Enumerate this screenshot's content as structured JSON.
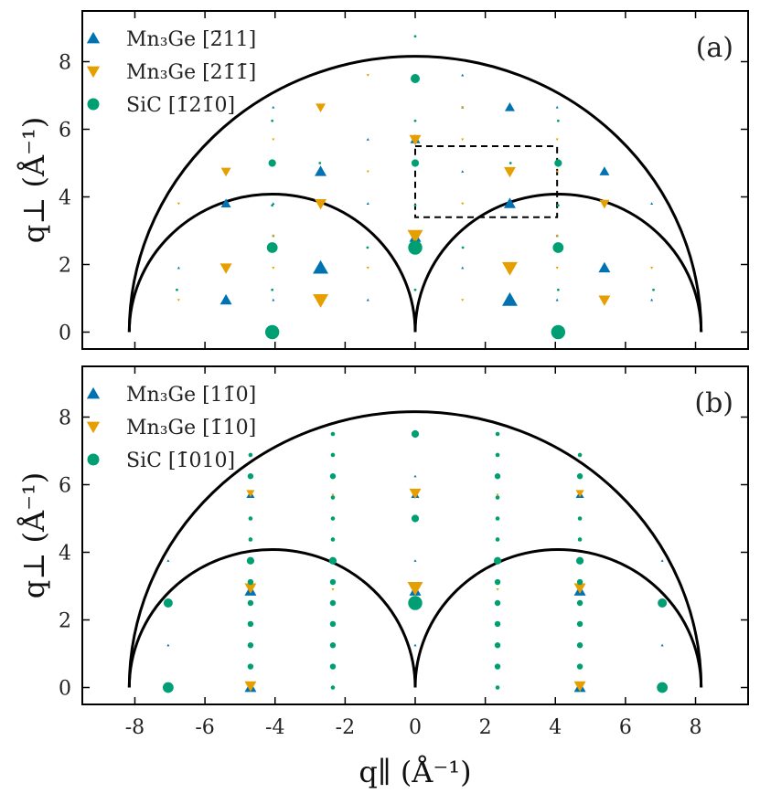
{
  "chart_data": [
    {
      "type": "scatter",
      "panel_label": "(a)",
      "xlabel": "q∥ (Å⁻¹)",
      "ylabel": "q⊥ (Å⁻¹)",
      "xlim": [
        -9.5,
        9.5
      ],
      "ylim": [
        -0.5,
        9.5
      ],
      "xticks": [
        -8,
        -6,
        -4,
        -2,
        0,
        2,
        4,
        6,
        8
      ],
      "yticks": [
        0,
        2,
        4,
        6,
        8
      ],
      "xtick_labels": [
        "-8",
        "-6",
        "-4",
        "-2",
        "0",
        "2",
        "4",
        "6",
        "8"
      ],
      "ytick_labels": [
        "0",
        "2",
        "4",
        "6",
        "8"
      ],
      "show_xtick_labels": false,
      "show_xlabel": false,
      "legend_position": "top-left",
      "circles": [
        {
          "cx": 0,
          "cy": 0,
          "r": 8.16
        },
        {
          "cx": -4.08,
          "cy": 0,
          "r": 4.08
        },
        {
          "cx": 4.08,
          "cy": 0,
          "r": 4.08
        }
      ],
      "dashed_box": {
        "x0": 0,
        "x1": 4.05,
        "y0": 3.4,
        "y1": 5.5
      },
      "series": [
        {
          "name": "Mn₃Ge [2̄11]",
          "marker": "triangle-up",
          "color": "#0072B2",
          "points": [
            {
              "x": -5.4,
              "y": 0.95,
              "s": 6
            },
            {
              "x": -2.7,
              "y": 1.9,
              "s": 8
            },
            {
              "x": 2.7,
              "y": 0.95,
              "s": 8
            },
            {
              "x": 5.4,
              "y": 1.9,
              "s": 6
            },
            {
              "x": -5.4,
              "y": 3.8,
              "s": 5
            },
            {
              "x": 2.7,
              "y": 3.8,
              "s": 6
            },
            {
              "x": 0,
              "y": 2.8,
              "s": 6
            },
            {
              "x": -2.7,
              "y": 4.75,
              "s": 6
            },
            {
              "x": 5.4,
              "y": 4.75,
              "s": 5
            },
            {
              "x": 0,
              "y": 5.7,
              "s": 5
            },
            {
              "x": 2.7,
              "y": 6.65,
              "s": 5
            },
            {
              "x": -6.75,
              "y": 1.9,
              "s": 1
            },
            {
              "x": 6.75,
              "y": 0.95,
              "s": 1
            },
            {
              "x": -4.05,
              "y": 0.95,
              "s": 1
            },
            {
              "x": -1.35,
              "y": 0.95,
              "s": 1
            },
            {
              "x": 1.35,
              "y": 1.9,
              "s": 1
            },
            {
              "x": -1.35,
              "y": 3.8,
              "s": 1
            },
            {
              "x": 1.35,
              "y": 4.75,
              "s": 1
            },
            {
              "x": 6.75,
              "y": 3.8,
              "s": 1
            },
            {
              "x": -4.05,
              "y": 3.8,
              "s": 1
            },
            {
              "x": -1.35,
              "y": 5.7,
              "s": 1
            },
            {
              "x": 1.35,
              "y": 6.65,
              "s": 1
            },
            {
              "x": -4.05,
              "y": 6.65,
              "s": 1
            },
            {
              "x": 4.05,
              "y": 6.65,
              "s": 1
            },
            {
              "x": 1.35,
              "y": 7.6,
              "s": 1
            },
            {
              "x": -4.05,
              "y": 2.85,
              "s": 1
            },
            {
              "x": 4.05,
              "y": 0.95,
              "s": 1
            },
            {
              "x": 4.05,
              "y": 2.85,
              "s": 1
            }
          ]
        },
        {
          "name": "Mn₃Ge [21̄1̄]",
          "marker": "triangle-down",
          "color": "#E69F00",
          "points": [
            {
              "x": -2.7,
              "y": 0.95,
              "s": 8
            },
            {
              "x": 2.7,
              "y": 1.9,
              "s": 8
            },
            {
              "x": -5.4,
              "y": 1.9,
              "s": 6
            },
            {
              "x": 5.4,
              "y": 0.95,
              "s": 6
            },
            {
              "x": 0,
              "y": 2.85,
              "s": 8
            },
            {
              "x": -2.7,
              "y": 3.8,
              "s": 6
            },
            {
              "x": 5.4,
              "y": 3.8,
              "s": 5
            },
            {
              "x": -5.4,
              "y": 4.75,
              "s": 5
            },
            {
              "x": 2.7,
              "y": 4.75,
              "s": 6
            },
            {
              "x": 0,
              "y": 5.7,
              "s": 6
            },
            {
              "x": -2.7,
              "y": 6.65,
              "s": 5
            },
            {
              "x": -6.75,
              "y": 0.95,
              "s": 1
            },
            {
              "x": 6.75,
              "y": 1.9,
              "s": 1
            },
            {
              "x": -4.05,
              "y": 1.9,
              "s": 1
            },
            {
              "x": -1.35,
              "y": 1.9,
              "s": 1
            },
            {
              "x": 1.35,
              "y": 0.95,
              "s": 1
            },
            {
              "x": 4.05,
              "y": 1.9,
              "s": 1
            },
            {
              "x": -6.75,
              "y": 3.8,
              "s": 1
            },
            {
              "x": 1.35,
              "y": 3.8,
              "s": 1
            },
            {
              "x": -1.35,
              "y": 4.75,
              "s": 1
            },
            {
              "x": 4.05,
              "y": 4.75,
              "s": 1
            },
            {
              "x": 1.35,
              "y": 5.7,
              "s": 1
            },
            {
              "x": -4.05,
              "y": 5.7,
              "s": 1
            },
            {
              "x": 4.05,
              "y": 5.7,
              "s": 1
            },
            {
              "x": -1.35,
              "y": 7.6,
              "s": 1
            },
            {
              "x": 1.35,
              "y": 6.65,
              "s": 1
            },
            {
              "x": -4.05,
              "y": 2.85,
              "s": 1
            },
            {
              "x": 4.05,
              "y": 2.85,
              "s": 1
            }
          ]
        },
        {
          "name": "SiC [1̄21̄0]",
          "marker": "circle",
          "color": "#009E73",
          "points": [
            {
              "x": -4.08,
              "y": 0,
              "s": 8
            },
            {
              "x": 4.08,
              "y": 0,
              "s": 8
            },
            {
              "x": -4.08,
              "y": 2.5,
              "s": 6
            },
            {
              "x": 0,
              "y": 2.5,
              "s": 8
            },
            {
              "x": 4.08,
              "y": 2.5,
              "s": 6
            },
            {
              "x": -4.08,
              "y": 5,
              "s": 4
            },
            {
              "x": 0,
              "y": 5,
              "s": 4
            },
            {
              "x": 4.08,
              "y": 5,
              "s": 4
            },
            {
              "x": 0,
              "y": 7.5,
              "s": 5
            },
            {
              "x": -6.8,
              "y": 1.25,
              "s": 1
            },
            {
              "x": 6.8,
              "y": 1.25,
              "s": 1
            },
            {
              "x": -4.08,
              "y": 1.25,
              "s": 1
            },
            {
              "x": 4.08,
              "y": 1.25,
              "s": 1
            },
            {
              "x": 0,
              "y": 1.25,
              "s": 1
            },
            {
              "x": -1.36,
              "y": 2.5,
              "s": 1
            },
            {
              "x": 1.36,
              "y": 2.5,
              "s": 1
            },
            {
              "x": -4.08,
              "y": 3.75,
              "s": 1
            },
            {
              "x": 4.08,
              "y": 3.75,
              "s": 1
            },
            {
              "x": 0,
              "y": 3.75,
              "s": 1
            },
            {
              "x": -4.08,
              "y": 6.25,
              "s": 1
            },
            {
              "x": 4.08,
              "y": 6.25,
              "s": 1
            },
            {
              "x": 0,
              "y": 6.25,
              "s": 1
            },
            {
              "x": -2.72,
              "y": 5,
              "s": 1
            },
            {
              "x": 2.72,
              "y": 5,
              "s": 1
            },
            {
              "x": 0,
              "y": 8.75,
              "s": 1
            }
          ]
        }
      ]
    },
    {
      "type": "scatter",
      "panel_label": "(b)",
      "xlabel": "q∥ (Å⁻¹)",
      "ylabel": "q⊥ (Å⁻¹)",
      "xlim": [
        -9.5,
        9.5
      ],
      "ylim": [
        -0.5,
        9.5
      ],
      "xticks": [
        -8,
        -6,
        -4,
        -2,
        0,
        2,
        4,
        6,
        8
      ],
      "yticks": [
        0,
        2,
        4,
        6,
        8
      ],
      "xtick_labels": [
        "-8",
        "-6",
        "-4",
        "-2",
        "0",
        "2",
        "4",
        "6",
        "8"
      ],
      "ytick_labels": [
        "0",
        "2",
        "4",
        "6",
        "8"
      ],
      "show_xtick_labels": true,
      "show_xlabel": true,
      "legend_position": "top-left",
      "circles": [
        {
          "cx": 0,
          "cy": 0,
          "r": 8.16
        },
        {
          "cx": -4.08,
          "cy": 0,
          "r": 4.08
        },
        {
          "cx": 4.08,
          "cy": 0,
          "r": 4.08
        }
      ],
      "dashed_box": null,
      "series": [
        {
          "name": "Mn₃Ge [11̄0]",
          "marker": "triangle-up",
          "color": "#0072B2",
          "points": [
            {
              "x": -4.7,
              "y": 0,
              "s": 6
            },
            {
              "x": 4.7,
              "y": 0,
              "s": 6
            },
            {
              "x": -4.7,
              "y": 2.85,
              "s": 6
            },
            {
              "x": 4.7,
              "y": 2.85,
              "s": 6
            },
            {
              "x": 0,
              "y": 2.85,
              "s": 6
            },
            {
              "x": -4.7,
              "y": 5.7,
              "s": 4
            },
            {
              "x": 4.7,
              "y": 5.7,
              "s": 4
            },
            {
              "x": 0,
              "y": 5.7,
              "s": 4
            },
            {
              "x": -7.05,
              "y": 1.25,
              "s": 1
            },
            {
              "x": 7.05,
              "y": 1.25,
              "s": 1
            },
            {
              "x": 0,
              "y": 1.25,
              "s": 1
            },
            {
              "x": -7.05,
              "y": 3.75,
              "s": 1
            },
            {
              "x": 7.05,
              "y": 3.75,
              "s": 1
            },
            {
              "x": 0,
              "y": 3.75,
              "s": 1
            },
            {
              "x": 0,
              "y": 6.25,
              "s": 1
            }
          ]
        },
        {
          "name": "Mn₃Ge [1̄10]",
          "marker": "triangle-down",
          "color": "#E69F00",
          "points": [
            {
              "x": -4.7,
              "y": 0.05,
              "s": 6
            },
            {
              "x": 4.7,
              "y": 0.05,
              "s": 6
            },
            {
              "x": -4.7,
              "y": 2.95,
              "s": 6
            },
            {
              "x": 4.7,
              "y": 2.95,
              "s": 6
            },
            {
              "x": 0,
              "y": 2.95,
              "s": 8
            },
            {
              "x": -4.7,
              "y": 5.75,
              "s": 4
            },
            {
              "x": 4.7,
              "y": 5.75,
              "s": 4
            },
            {
              "x": 0,
              "y": 5.75,
              "s": 6
            },
            {
              "x": -2.35,
              "y": 2.9,
              "s": 1
            },
            {
              "x": 2.35,
              "y": 2.9,
              "s": 1
            },
            {
              "x": -2.35,
              "y": 5.7,
              "s": 1
            },
            {
              "x": 2.35,
              "y": 5.7,
              "s": 1
            }
          ]
        },
        {
          "name": "SiC [1̄010]",
          "marker": "circle",
          "color": "#009E73",
          "points": [
            {
              "x": -7.05,
              "y": 0,
              "s": 6
            },
            {
              "x": 7.05,
              "y": 0,
              "s": 6
            },
            {
              "x": -7.05,
              "y": 2.5,
              "s": 5
            },
            {
              "x": 7.05,
              "y": 2.5,
              "s": 5
            },
            {
              "x": 0,
              "y": 2.5,
              "s": 8
            },
            {
              "x": 0,
              "y": 5,
              "s": 4
            },
            {
              "x": 0,
              "y": 7.5,
              "s": 4
            },
            {
              "x": -4.7,
              "y": 0.62,
              "s": 3
            },
            {
              "x": -4.7,
              "y": 1.25,
              "s": 3
            },
            {
              "x": -4.7,
              "y": 1.88,
              "s": 3
            },
            {
              "x": -4.7,
              "y": 2.5,
              "s": 3
            },
            {
              "x": -4.7,
              "y": 3.12,
              "s": 3
            },
            {
              "x": -4.7,
              "y": 3.75,
              "s": 4
            },
            {
              "x": -4.7,
              "y": 4.38,
              "s": 2
            },
            {
              "x": -4.7,
              "y": 5,
              "s": 2
            },
            {
              "x": -4.7,
              "y": 6.25,
              "s": 3
            },
            {
              "x": -4.7,
              "y": 6.88,
              "s": 2
            },
            {
              "x": 4.7,
              "y": 0.62,
              "s": 3
            },
            {
              "x": 4.7,
              "y": 1.25,
              "s": 3
            },
            {
              "x": 4.7,
              "y": 1.88,
              "s": 3
            },
            {
              "x": 4.7,
              "y": 2.5,
              "s": 3
            },
            {
              "x": 4.7,
              "y": 3.12,
              "s": 3
            },
            {
              "x": 4.7,
              "y": 3.75,
              "s": 4
            },
            {
              "x": 4.7,
              "y": 4.38,
              "s": 2
            },
            {
              "x": 4.7,
              "y": 5,
              "s": 2
            },
            {
              "x": 4.7,
              "y": 6.25,
              "s": 3
            },
            {
              "x": 4.7,
              "y": 6.88,
              "s": 2
            },
            {
              "x": -2.35,
              "y": 0,
              "s": 2
            },
            {
              "x": -2.35,
              "y": 0.62,
              "s": 3
            },
            {
              "x": -2.35,
              "y": 1.25,
              "s": 3
            },
            {
              "x": -2.35,
              "y": 1.88,
              "s": 3
            },
            {
              "x": -2.35,
              "y": 2.5,
              "s": 3
            },
            {
              "x": -2.35,
              "y": 3.12,
              "s": 3
            },
            {
              "x": -2.35,
              "y": 3.75,
              "s": 4
            },
            {
              "x": -2.35,
              "y": 4.38,
              "s": 2
            },
            {
              "x": -2.35,
              "y": 5,
              "s": 2
            },
            {
              "x": -2.35,
              "y": 5.62,
              "s": 2
            },
            {
              "x": -2.35,
              "y": 6.25,
              "s": 3
            },
            {
              "x": -2.35,
              "y": 6.88,
              "s": 2
            },
            {
              "x": -2.35,
              "y": 7.5,
              "s": 2
            },
            {
              "x": 2.35,
              "y": 0,
              "s": 2
            },
            {
              "x": 2.35,
              "y": 0.62,
              "s": 3
            },
            {
              "x": 2.35,
              "y": 1.25,
              "s": 3
            },
            {
              "x": 2.35,
              "y": 1.88,
              "s": 3
            },
            {
              "x": 2.35,
              "y": 2.5,
              "s": 3
            },
            {
              "x": 2.35,
              "y": 3.12,
              "s": 3
            },
            {
              "x": 2.35,
              "y": 3.75,
              "s": 4
            },
            {
              "x": 2.35,
              "y": 4.38,
              "s": 2
            },
            {
              "x": 2.35,
              "y": 5,
              "s": 2
            },
            {
              "x": 2.35,
              "y": 5.62,
              "s": 2
            },
            {
              "x": 2.35,
              "y": 6.25,
              "s": 3
            },
            {
              "x": 2.35,
              "y": 6.88,
              "s": 2
            },
            {
              "x": 2.35,
              "y": 7.5,
              "s": 2
            }
          ]
        }
      ]
    }
  ]
}
